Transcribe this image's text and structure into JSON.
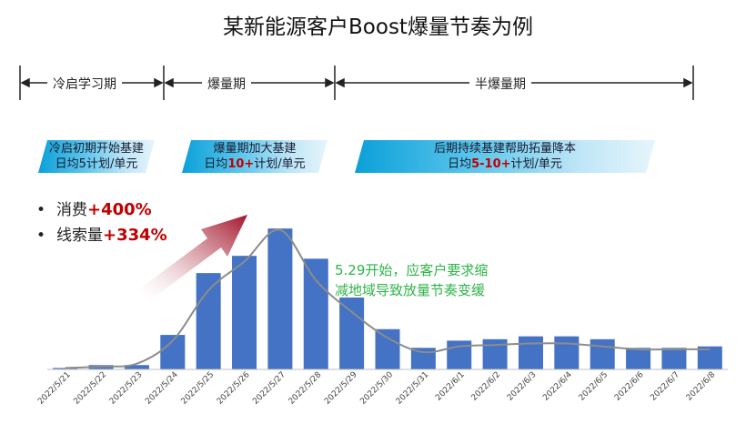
{
  "title": "某新能源客户Boost爆量节奏为例",
  "phases": [
    {
      "label": "冷启学习期"
    },
    {
      "label": "爆量期"
    },
    {
      "label": "半爆量期"
    }
  ],
  "banners": [
    {
      "line1": "冷启初期开始基建",
      "line2_pre": "日均5计划/单元",
      "line2_hl": "",
      "line2_post": ""
    },
    {
      "line1": "爆量期加大基建",
      "line2_pre": "日均",
      "line2_hl": "10+",
      "line2_post": "计划/单元"
    },
    {
      "line1": "后期持续基建帮助拓量降本",
      "line2_pre": "日均",
      "line2_hl": "5-10+",
      "line2_post": "计划/单元"
    }
  ],
  "bullets": [
    {
      "bullet": "•",
      "label": "消费",
      "value": "+400%"
    },
    {
      "bullet": "•",
      "label": "线索量",
      "value": "+334%"
    }
  ],
  "annotation": {
    "line1": "5.29开始，应客户要求缩",
    "line2": "减地域导致放量节奏变缓"
  },
  "colors": {
    "bar": "#4472c4",
    "trend_line": "#8c8c8c",
    "arrow": "#b22234",
    "highlight": "#c00000",
    "annotation": "#2fb34a"
  },
  "chart_data": {
    "type": "bar",
    "title": "",
    "xlabel": "",
    "ylabel": "",
    "categories": [
      "2022/5/21",
      "2022/5/22",
      "2022/5/23",
      "2022/5/24",
      "2022/5/25",
      "2022/5/26",
      "2022/5/27",
      "2022/5/28",
      "2022/5/29",
      "2022/5/30",
      "2022/5/31",
      "2022/6/1",
      "2022/6/2",
      "2022/6/3",
      "2022/6/4",
      "2022/6/5",
      "2022/6/6",
      "2022/6/7",
      "2022/6/8"
    ],
    "values": [
      1,
      3,
      3,
      24,
      67,
      79,
      98,
      77,
      50,
      28,
      15,
      20,
      21,
      23,
      23,
      21,
      15,
      15,
      16
    ],
    "trend": [
      1,
      2,
      4,
      20,
      55,
      75,
      97,
      62,
      40,
      22,
      12,
      16,
      17,
      18,
      18,
      16,
      14,
      14,
      14
    ],
    "ylim": [
      0,
      100
    ],
    "grid": false,
    "legend": "none"
  }
}
